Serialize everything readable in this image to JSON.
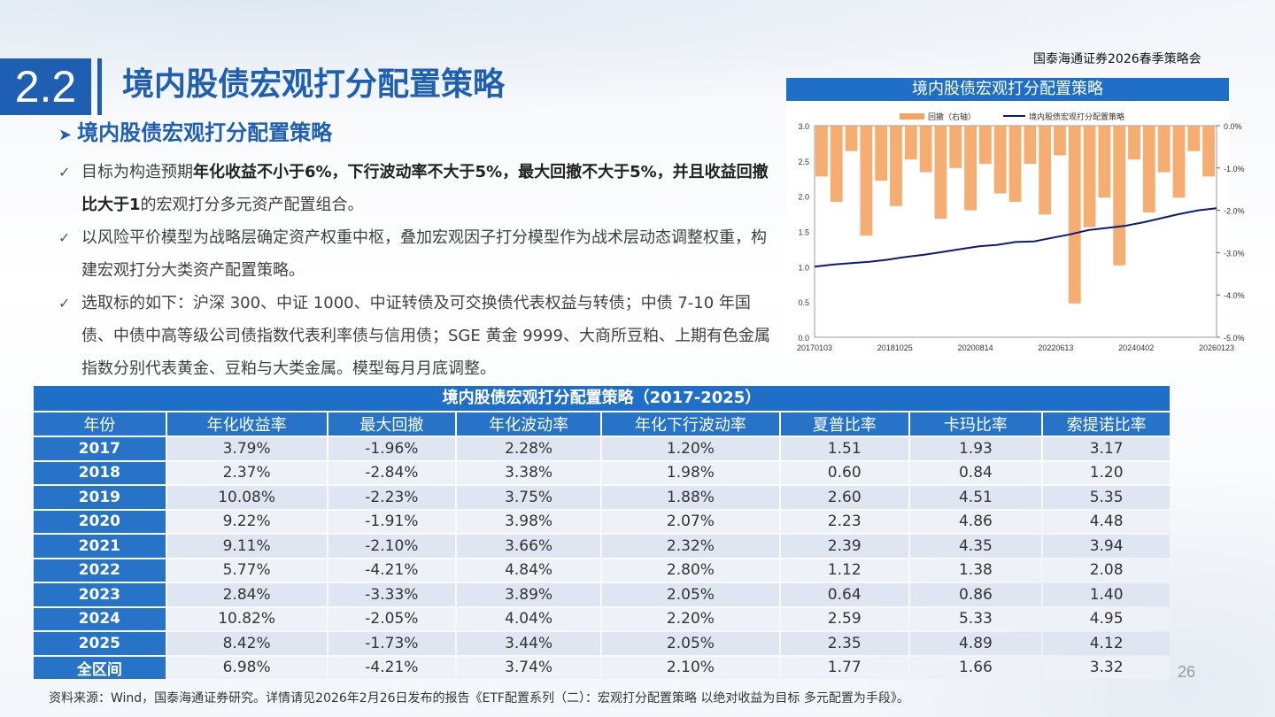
{
  "brand": "国泰海通证券2026春季策略会",
  "section_number": "2.2",
  "page_title": "境内股债宏观打分配置策略",
  "sub_title": "境内股债宏观打分配置策略",
  "bullets": [
    {
      "parts": [
        {
          "text": "目标为构造预期",
          "bold": false
        },
        {
          "text": "年化收益不小于6%，下行波动率不大于5%，最大回撤不大于5%，并且收益回撤比大于1",
          "bold": true
        },
        {
          "text": "的宏观打分多元资产配置组合。",
          "bold": false
        }
      ]
    },
    {
      "parts": [
        {
          "text": "以风险平价模型为战略层确定资产权重中枢，叠加宏观因子打分模型作为战术层动态调整权重，构建宏观打分大类资产配置策略。",
          "bold": false
        }
      ]
    },
    {
      "parts": [
        {
          "text": "选取标的如下：沪深 300、中证 1000、中证转债及可交换债代表权益与转债；中债 7-10 年国债、中债中高等级公司债指数代表利率债与信用债；SGE 黄金 9999、大商所豆粕、上期有色金属指数分别代表黄金、豆粕与大类金属。模型每月月底调整。",
          "bold": false
        }
      ]
    }
  ],
  "chart_data": {
    "type": "area",
    "title": "境内股债宏观打分配置策略",
    "legend": [
      "回撤（右轴）",
      "境内股债宏观打分配置策略"
    ],
    "legend_position": "top",
    "colors": {
      "drawdown": "#f4a462",
      "nav": "#0d1a78"
    },
    "x_ticks": [
      "20170103",
      "20181025",
      "20200814",
      "20220613",
      "20240402",
      "20260123"
    ],
    "y_left": {
      "ticks": [
        "3.0",
        "2.5",
        "2.0",
        "1.5",
        "1.0",
        "0.5",
        "0.0"
      ],
      "range": [
        0,
        3
      ]
    },
    "y_right": {
      "ticks": [
        "0.0%",
        "-1.0%",
        "-2.0%",
        "-3.0%",
        "-4.0%",
        "-5.0%"
      ],
      "range": [
        -5,
        0
      ]
    },
    "nav_series": [
      1.0,
      1.03,
      1.05,
      1.07,
      1.1,
      1.14,
      1.17,
      1.21,
      1.25,
      1.29,
      1.31,
      1.35,
      1.36,
      1.41,
      1.46,
      1.52,
      1.55,
      1.58,
      1.63,
      1.69,
      1.75,
      1.8,
      1.83
    ],
    "drawdown_series": [
      -1.2,
      -1.8,
      -0.6,
      -2.6,
      -1.3,
      -1.9,
      -0.8,
      -1.1,
      -2.2,
      -1.0,
      -2.0,
      -0.9,
      -1.6,
      -1.8,
      -0.9,
      -2.1,
      -0.7,
      -4.2,
      -2.4,
      -1.7,
      -3.3,
      -0.8,
      -2.05,
      -1.1,
      -1.7,
      -0.6,
      -1.2
    ]
  },
  "table": {
    "title": "境内股债宏观打分配置策略（2017-2025）",
    "headers": [
      "年份",
      "年化收益率",
      "最大回撤",
      "年化波动率",
      "年化下行波动率",
      "夏普比率",
      "卡玛比率",
      "索提诺比率"
    ],
    "rows": [
      [
        "2017",
        "3.79%",
        "-1.96%",
        "2.28%",
        "1.20%",
        "1.51",
        "1.93",
        "3.17"
      ],
      [
        "2018",
        "2.37%",
        "-2.84%",
        "3.38%",
        "1.98%",
        "0.60",
        "0.84",
        "1.20"
      ],
      [
        "2019",
        "10.08%",
        "-2.23%",
        "3.75%",
        "1.88%",
        "2.60",
        "4.51",
        "5.35"
      ],
      [
        "2020",
        "9.22%",
        "-1.91%",
        "3.98%",
        "2.07%",
        "2.23",
        "4.86",
        "4.48"
      ],
      [
        "2021",
        "9.11%",
        "-2.10%",
        "3.66%",
        "2.32%",
        "2.39",
        "4.35",
        "3.94"
      ],
      [
        "2022",
        "5.77%",
        "-4.21%",
        "4.84%",
        "2.80%",
        "1.12",
        "1.38",
        "2.08"
      ],
      [
        "2023",
        "2.84%",
        "-3.33%",
        "3.89%",
        "2.05%",
        "0.64",
        "0.86",
        "1.40"
      ],
      [
        "2024",
        "10.82%",
        "-2.05%",
        "4.04%",
        "2.20%",
        "2.59",
        "5.33",
        "4.95"
      ],
      [
        "2025",
        "8.42%",
        "-1.73%",
        "3.44%",
        "2.05%",
        "2.35",
        "4.89",
        "4.12"
      ],
      [
        "全区间",
        "6.98%",
        "-4.21%",
        "3.74%",
        "2.10%",
        "1.77",
        "1.66",
        "3.32"
      ]
    ]
  },
  "page_number": "26",
  "footnote": "资料来源：Wind，国泰海通证券研究。详情请见2026年2月26日发布的报告《ETF配置系列（二）：宏观打分配置策略 以绝对收益为目标 多元配置为手段》。"
}
